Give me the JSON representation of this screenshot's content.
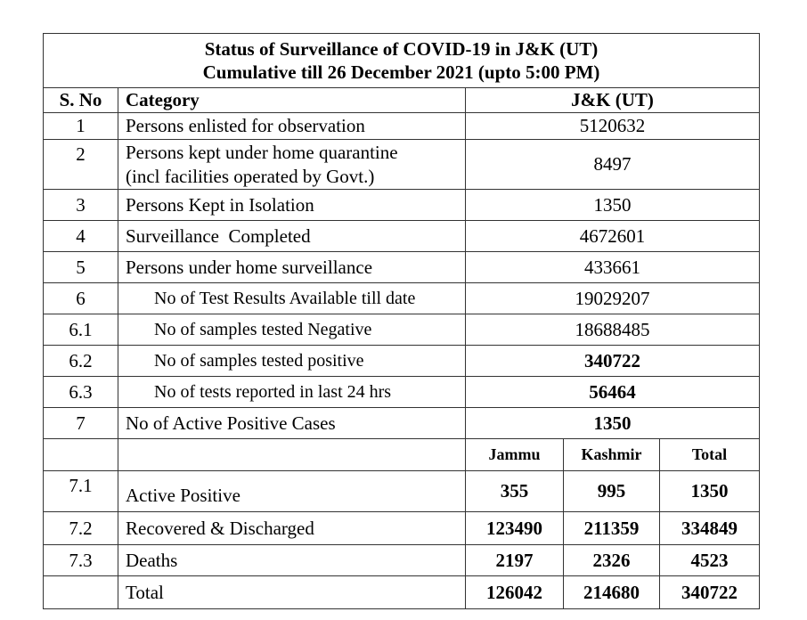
{
  "title": "Status of Surveillance of COVID-19 in J&K (UT)",
  "subtitle": "Cumulative till 26 December 2021 (upto 5:00 PM)",
  "headers": {
    "sno": "S. No",
    "category": "Category",
    "value": "J&K (UT)"
  },
  "rows": [
    {
      "sno": "1",
      "category": "Persons enlisted for observation",
      "value": "5120632"
    },
    {
      "sno": "2",
      "category": "Persons kept under home quarantine",
      "category2": "(incl facilities operated by Govt.)",
      "value": "8497"
    },
    {
      "sno": "3",
      "category": "Persons Kept in Isolation",
      "value": "1350"
    },
    {
      "sno": "4",
      "category": "Surveillance  Completed",
      "value": "4672601"
    },
    {
      "sno": "5",
      "category": "Persons under home surveillance",
      "value": "433661"
    },
    {
      "sno": "6",
      "category": "No of Test Results Available till date",
      "value": "19029207"
    },
    {
      "sno": "6.1",
      "category": "No of samples tested Negative",
      "value": "18688485"
    },
    {
      "sno": "6.2",
      "category": "No of samples tested positive",
      "value": "340722"
    },
    {
      "sno": "6.3",
      "category": "No of tests reported in last 24 hrs",
      "value": "56464"
    },
    {
      "sno": "7",
      "category": "No of Active Positive Cases",
      "value": "1350"
    }
  ],
  "split_headers": {
    "jammu": "Jammu",
    "kashmir": "Kashmir",
    "total": "Total"
  },
  "split_rows": [
    {
      "sno": "7.1",
      "category": "Active Positive",
      "jammu": "355",
      "kashmir": "995",
      "total": "1350"
    },
    {
      "sno": "7.2",
      "category": "Recovered & Discharged",
      "jammu": "123490",
      "kashmir": "211359",
      "total": "334849"
    },
    {
      "sno": "7.3",
      "category": "Deaths",
      "jammu": "2197",
      "kashmir": "2326",
      "total": "4523"
    },
    {
      "sno": "",
      "category": "Total",
      "jammu": "126042",
      "kashmir": "214680",
      "total": "340722"
    }
  ]
}
